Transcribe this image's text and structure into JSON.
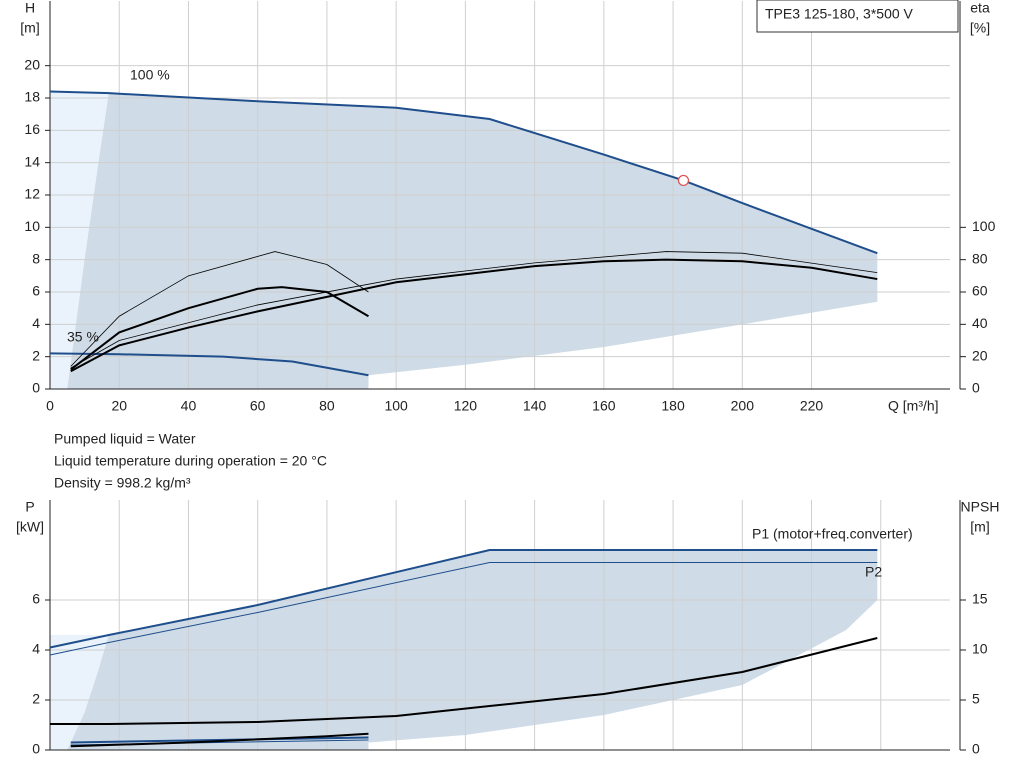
{
  "title": "TPE3 125-180, 3*500 V",
  "notes": [
    "Pumped liquid = Water",
    "Liquid temperature during operation = 20 °C",
    "Density = 998.2 kg/m³"
  ],
  "chart_data": [
    {
      "type": "line",
      "ylabel": "H",
      "yunit": "[m]",
      "y2label": "eta",
      "y2unit": "[%]",
      "xlabel": "Q [m³/h]",
      "xlim": [
        0,
        260
      ],
      "ylim": [
        0,
        24
      ],
      "y2lim": [
        0,
        240
      ],
      "xticks": [
        0,
        20,
        40,
        60,
        80,
        100,
        120,
        140,
        160,
        180,
        200,
        220
      ],
      "yticks": [
        0,
        2,
        4,
        6,
        8,
        10,
        12,
        14,
        16,
        18,
        20
      ],
      "y2ticks": [
        0,
        20,
        40,
        60,
        80,
        100
      ],
      "bands": [
        {
          "color": "#eaf3fb",
          "x": [
            0,
            17,
            17,
            0
          ],
          "y": [
            18.4,
            18.4,
            0,
            0
          ]
        },
        {
          "color": "#cfdbe6",
          "x": [
            5,
            10,
            14,
            17,
            60,
            100,
            127,
            160,
            183,
            200,
            239,
            239,
            200,
            160,
            120,
            92,
            92
          ],
          "y": [
            0,
            8,
            14,
            18.3,
            17.8,
            17.4,
            16.7,
            14.5,
            12.9,
            11.5,
            8.4,
            5.4,
            4,
            2.6,
            1.5,
            0.85,
            0
          ]
        }
      ],
      "series": [
        {
          "name": "100 %",
          "color": "#1f4e8c",
          "width": 2,
          "x": [
            0,
            17,
            60,
            100,
            127,
            160,
            183,
            200,
            239
          ],
          "values": [
            18.4,
            18.3,
            17.8,
            17.4,
            16.7,
            14.5,
            12.9,
            11.5,
            8.4
          ]
        },
        {
          "name": "35 %",
          "color": "#1f4e8c",
          "width": 2,
          "x": [
            0,
            20,
            50,
            70,
            92
          ],
          "values": [
            2.2,
            2.15,
            2.0,
            1.7,
            0.85
          ]
        },
        {
          "color": "#000000",
          "width": 2,
          "axis": "y2",
          "x": [
            6,
            20,
            40,
            60,
            80,
            100,
            120,
            140,
            160,
            178,
            200,
            220,
            239
          ],
          "values": [
            11,
            27,
            38,
            48,
            57,
            66,
            71,
            76,
            79,
            80,
            79,
            75,
            68
          ]
        },
        {
          "color": "#000000",
          "width": 0.8,
          "axis": "y2",
          "x": [
            6,
            20,
            60,
            100,
            140,
            178,
            200,
            239
          ],
          "values": [
            13,
            30,
            52,
            68,
            78,
            85,
            84,
            72
          ]
        },
        {
          "color": "#000000",
          "width": 2,
          "axis": "y2",
          "x": [
            6,
            20,
            40,
            60,
            67,
            80,
            92
          ],
          "values": [
            12,
            35,
            50,
            62,
            63,
            60,
            45
          ]
        },
        {
          "color": "#000000",
          "width": 0.8,
          "axis": "y2",
          "x": [
            6,
            20,
            40,
            65,
            80,
            92
          ],
          "values": [
            14,
            45,
            70,
            85,
            77,
            60
          ]
        }
      ],
      "points": [
        {
          "x": 183,
          "y": 12.9,
          "color": "#e05050"
        }
      ]
    },
    {
      "type": "line",
      "ylabel": "P",
      "yunit": "[kW]",
      "y2label": "NPSH",
      "y2unit": "[m]",
      "xlim": [
        0,
        260
      ],
      "ylim": [
        0,
        10
      ],
      "y2lim": [
        0,
        25
      ],
      "xgrid": [
        0,
        20,
        40,
        60,
        80,
        100,
        120,
        140,
        160,
        180,
        200,
        220,
        240
      ],
      "yticks": [
        0,
        2,
        4,
        6
      ],
      "y2ticks": [
        0,
        5,
        10,
        15
      ],
      "bands": [
        {
          "color": "#eaf3fb",
          "x": [
            0,
            17,
            17,
            0
          ],
          "y": [
            4.6,
            4.6,
            0,
            0
          ]
        },
        {
          "color": "#cfdbe6",
          "x": [
            5,
            10,
            14,
            17,
            60,
            127,
            239,
            239,
            230,
            200,
            160,
            120,
            92,
            92
          ],
          "y": [
            0,
            1.5,
            3.2,
            4.6,
            5.8,
            8,
            8,
            6,
            4.8,
            2.6,
            1.4,
            0.6,
            0.3,
            0
          ]
        }
      ],
      "series": [
        {
          "name": "P1 (motor+freq.converter)",
          "color": "#1f4e8c",
          "width": 2,
          "x": [
            0,
            17,
            60,
            127,
            239
          ],
          "values": [
            4.1,
            4.6,
            5.8,
            8.0,
            8.0
          ]
        },
        {
          "name": "P2",
          "color": "#1f4e8c",
          "width": 1,
          "x": [
            0,
            17,
            60,
            127,
            239
          ],
          "values": [
            3.8,
            4.3,
            5.5,
            7.5,
            7.5
          ]
        },
        {
          "color": "#000000",
          "width": 2,
          "axis": "y2",
          "x": [
            0,
            17,
            60,
            100,
            127,
            160,
            200,
            239
          ],
          "values": [
            2.6,
            2.6,
            2.8,
            3.4,
            4.4,
            5.6,
            7.8,
            11.2
          ]
        },
        {
          "color": "#1f4e8c",
          "width": 2,
          "x": [
            6,
            92
          ],
          "values": [
            0.3,
            0.5
          ]
        },
        {
          "color": "#1f4e8c",
          "width": 1,
          "x": [
            6,
            92
          ],
          "values": [
            0.2,
            0.4
          ]
        },
        {
          "color": "#000000",
          "width": 2,
          "x": [
            6,
            40,
            80,
            92
          ],
          "values": [
            0.15,
            0.3,
            0.55,
            0.65
          ]
        }
      ]
    }
  ]
}
